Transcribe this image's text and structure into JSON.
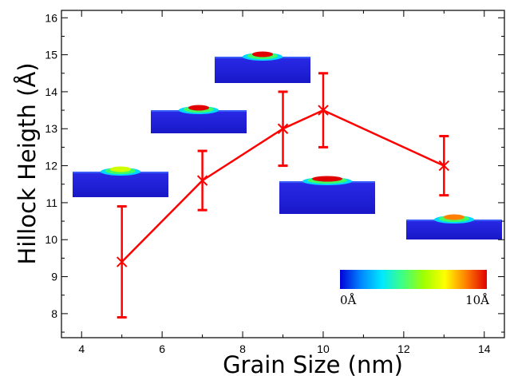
{
  "chart_data": {
    "type": "line",
    "xlabel": "Grain Size (nm)",
    "ylabel": "Hillock Heigth (Å)",
    "xlim": [
      3.5,
      14.5
    ],
    "ylim": [
      7.35,
      16.2
    ],
    "xticks": [
      4,
      6,
      8,
      10,
      12,
      14
    ],
    "xtick_labels": [
      "4",
      "6",
      "8",
      "10",
      "12",
      "14"
    ],
    "yticks": [
      8,
      9,
      10,
      11,
      12,
      13,
      14,
      15,
      16
    ],
    "ytick_labels": [
      "8",
      "9",
      "10",
      "11",
      "12",
      "13",
      "14",
      "15",
      "16"
    ],
    "grid": false,
    "series": [
      {
        "x": [
          5,
          7,
          9,
          10,
          13
        ],
        "y": [
          9.4,
          11.6,
          13.0,
          13.5,
          12.0
        ],
        "yerr_low": [
          7.9,
          10.8,
          12.0,
          12.5,
          11.2
        ],
        "yerr_high": [
          10.9,
          12.4,
          14.0,
          14.5,
          12.8
        ],
        "color": "#ff0000",
        "marker": "x"
      }
    ],
    "colorbar": {
      "min_label": "0Å",
      "max_label": "10Å",
      "colors": [
        "#0000d8",
        "#0088ff",
        "#00e8ff",
        "#40ff80",
        "#a0ff00",
        "#ffff00",
        "#ff8000",
        "#e00000"
      ]
    },
    "insets": [
      {
        "name": "inset-grain-4nm",
        "bump": "green"
      },
      {
        "name": "inset-grain-6nm",
        "bump": "red"
      },
      {
        "name": "inset-grain-8nm",
        "bump": "red"
      },
      {
        "name": "inset-grain-10nm",
        "bump": "red-wide"
      },
      {
        "name": "inset-grain-14nm",
        "bump": "orange"
      }
    ]
  }
}
